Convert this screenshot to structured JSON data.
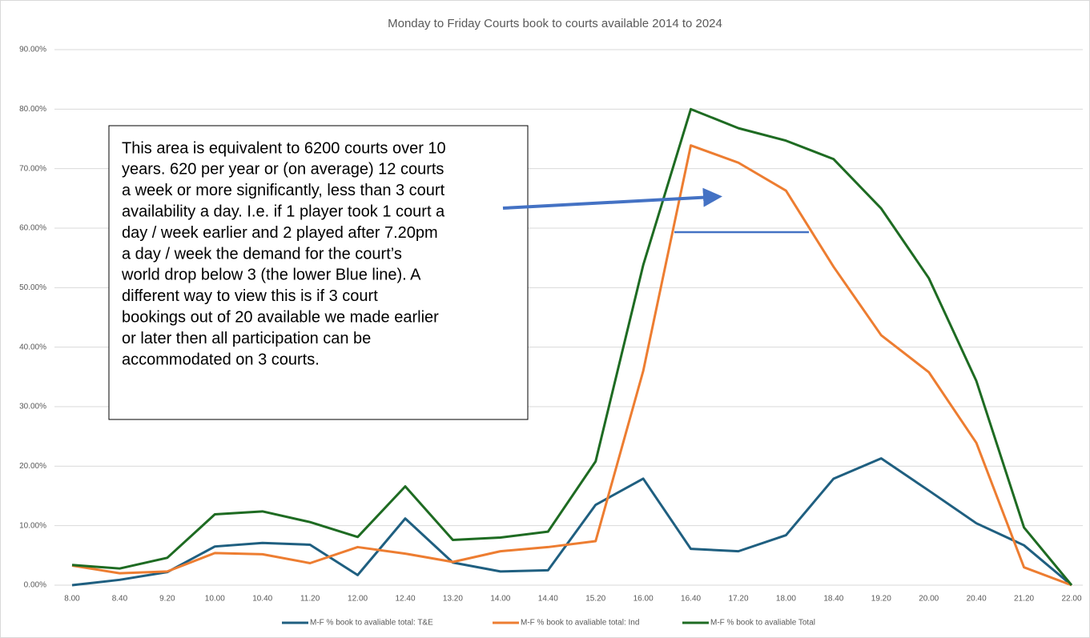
{
  "chart_data": {
    "type": "line",
    "title": "Monday to Friday Courts book to courts available 2014 to 2024",
    "categories": [
      "8.00",
      "8.40",
      "9.20",
      "10.00",
      "10.40",
      "11.20",
      "12.00",
      "12.40",
      "13.20",
      "14.00",
      "14.40",
      "15.20",
      "16.00",
      "16.40",
      "17.20",
      "18.00",
      "18.40",
      "19.20",
      "20.00",
      "20.40",
      "21.20",
      "22.00"
    ],
    "series": [
      {
        "name": "M-F % book to avaliable total: T&E",
        "color": "#1f5f80",
        "values": [
          0,
          0.9,
          2.2,
          6.5,
          7.1,
          6.8,
          1.7,
          11.2,
          3.8,
          2.3,
          2.5,
          13.5,
          17.9,
          6.1,
          5.7,
          8.4,
          17.9,
          21.3,
          15.9,
          10.4,
          6.7,
          0
        ]
      },
      {
        "name": "M-F % book to avaliable total: Ind",
        "color": "#ed7d31",
        "values": [
          3.3,
          2.0,
          2.3,
          5.4,
          5.2,
          3.7,
          6.4,
          5.3,
          3.9,
          5.7,
          6.4,
          7.4,
          36.0,
          73.9,
          71.0,
          66.3,
          53.5,
          42.0,
          35.8,
          23.9,
          3.0,
          0
        ]
      },
      {
        "name": "M-F % book to avaliable Total",
        "color": "#1e6b22",
        "values": [
          3.4,
          2.8,
          4.6,
          11.9,
          12.4,
          10.6,
          8.1,
          16.6,
          7.6,
          8.0,
          9.0,
          20.8,
          53.8,
          80.0,
          76.8,
          74.7,
          71.6,
          63.3,
          51.6,
          34.3,
          9.7,
          0
        ]
      }
    ],
    "ylim": [
      0,
      90
    ],
    "yticks": [
      {
        "value": 0,
        "label": "0.00%"
      },
      {
        "value": 10,
        "label": "10.00%"
      },
      {
        "value": 20,
        "label": "20.00%"
      },
      {
        "value": 30,
        "label": "30.00%"
      },
      {
        "value": 40,
        "label": "40.00%"
      },
      {
        "value": 50,
        "label": "50.00%"
      },
      {
        "value": 60,
        "label": "60.00%"
      },
      {
        "value": 70,
        "label": "70.00%"
      },
      {
        "value": 80,
        "label": "80.00%"
      },
      {
        "value": 90,
        "label": "90.00%"
      }
    ],
    "grid": true,
    "legend": "bottom",
    "annotation": [
      "This area is equivalent to 6200 courts over 10",
      "years. 620 per year or (on average) 12 courts",
      "a week or more significantly, less than 3 court",
      "availability a day. I.e. if 1 player took 1 court a",
      "day / week earlier and 2 played after 7.20pm",
      "a day / week  the demand for the court’s",
      "world drop below 3 (the lower Blue line). A",
      "different way to view this is if 3 court",
      "bookings out of 20 available we made earlier",
      "or later then all participation can be",
      "accommodated on 3 courts."
    ]
  }
}
